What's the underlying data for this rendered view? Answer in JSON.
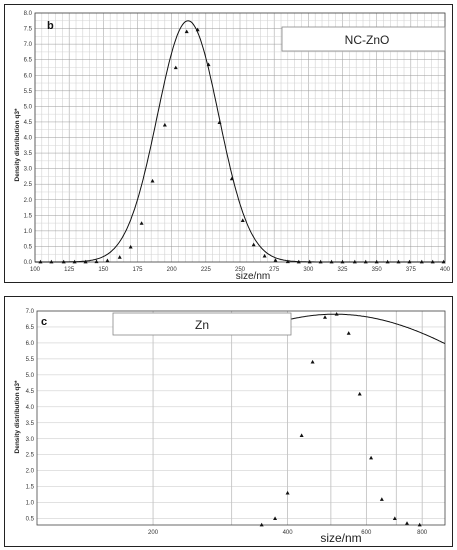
{
  "chart_data": [
    {
      "type": "line",
      "panel_label": "b",
      "legend_label": "NC-ZnO",
      "xlabel": "size/nm",
      "ylabel": "Density distribution q3*",
      "xlim": [
        100,
        400
      ],
      "ylim": [
        0,
        8
      ],
      "x_tick_labels": [
        "100",
        "125",
        "150",
        "175",
        "200",
        "225",
        "250",
        "275",
        "300",
        "325",
        "350",
        "375",
        "400"
      ],
      "y_tick_labels": [
        "0.0",
        "0.5",
        "1.0",
        "1.5",
        "2.0",
        "2.5",
        "3.0",
        "3.5",
        "4.0",
        "4.5",
        "5.0",
        "5.5",
        "6.0",
        "6.5",
        "7.0",
        "7.5",
        "8.0"
      ],
      "grid": true,
      "curve": {
        "type": "gaussian",
        "amplitude": 7.75,
        "mean": 212,
        "sigma": 22.5
      },
      "markers": {
        "x": [
          104,
          112,
          121,
          129,
          137,
          145,
          153,
          162,
          170,
          178,
          186,
          195,
          203,
          211,
          219,
          227,
          235,
          244,
          252,
          260,
          268,
          276,
          285,
          293,
          301,
          309,
          317,
          325,
          334,
          342,
          350,
          358,
          366,
          374,
          383,
          391,
          399
        ],
        "y": [
          0.0,
          0.0,
          0.0,
          0.0,
          0.0,
          0.01,
          0.04,
          0.15,
          0.48,
          1.24,
          2.6,
          4.4,
          6.24,
          7.4,
          7.46,
          6.34,
          4.48,
          2.67,
          1.33,
          0.55,
          0.19,
          0.05,
          0.01,
          0.0,
          0.0,
          0.0,
          0.0,
          0.0,
          0.0,
          0.0,
          0.0,
          0.0,
          0.0,
          0.0,
          0.0,
          0.0,
          0.0
        ]
      }
    },
    {
      "type": "line",
      "panel_label": "c",
      "legend_label": "Zn",
      "xlabel": "size/nm",
      "ylabel": "Density distribution q3*",
      "xscale": "log",
      "xlim": [
        110,
        900
      ],
      "ylim": [
        0.3,
        7.0
      ],
      "x_tick_labels": [
        "200",
        "400",
        "600",
        "800"
      ],
      "x_tick_values": [
        200,
        400,
        600,
        800
      ],
      "y_tick_labels": [
        "0.5",
        "1.0",
        "1.5",
        "2.0",
        "2.5",
        "3.0",
        "3.5",
        "4.0",
        "4.5",
        "5.0",
        "5.5",
        "6.0",
        "6.5",
        "7.0"
      ],
      "grid": true,
      "curve": {
        "type": "lognormal",
        "amplitude": 6.9,
        "median": 510,
        "sigma_log": 0.2
      },
      "markers": {
        "x": [
          350,
          375,
          400,
          430,
          455,
          485,
          515,
          548,
          580,
          615,
          650,
          695,
          740,
          790
        ],
        "y": [
          0.3,
          0.5,
          1.3,
          3.1,
          5.4,
          6.8,
          6.9,
          6.3,
          4.4,
          2.4,
          1.1,
          0.5,
          0.35,
          0.3
        ]
      }
    }
  ]
}
